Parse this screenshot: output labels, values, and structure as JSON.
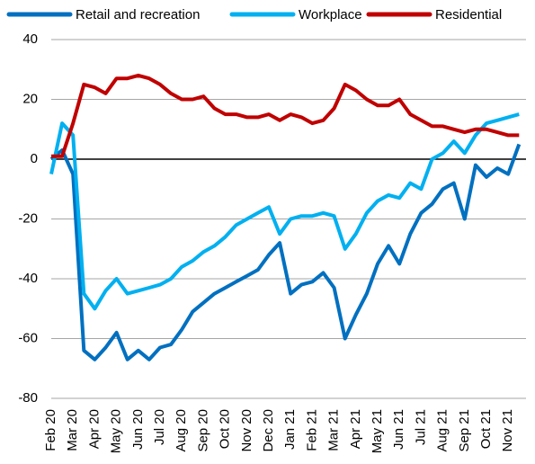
{
  "chart_data": {
    "type": "line",
    "categories": [
      "Feb 20",
      null,
      "Mar 20",
      null,
      "Apr 20",
      null,
      "May 20",
      null,
      "Jun 20",
      null,
      "Jul 20",
      null,
      "Aug 20",
      null,
      "Sep 20",
      null,
      "Oct 20",
      null,
      "Nov 20",
      null,
      "Dec 20",
      null,
      "Jan 21",
      null,
      "Feb 21",
      null,
      "Mar 21",
      null,
      "Apr 21",
      null,
      "May 21",
      null,
      "Jun 21",
      null,
      "Jul 21",
      null,
      "Aug 21",
      null,
      "Sep 21",
      null,
      "Oct 21",
      null,
      "Nov 21",
      null
    ],
    "series": [
      {
        "name": "Retail and recreation",
        "color": "#0070c0",
        "values": [
          0,
          3,
          -5,
          -64,
          -67,
          -63,
          -58,
          -67,
          -64,
          -67,
          -63,
          -62,
          -57,
          -51,
          -48,
          -45,
          -43,
          -41,
          -39,
          -37,
          -32,
          -28,
          -45,
          -42,
          -41,
          -38,
          -43,
          -60,
          -52,
          -45,
          -35,
          -29,
          -35,
          -25,
          -18,
          -15,
          -10,
          -8,
          -20,
          -2,
          -6,
          -3,
          -5,
          5
        ]
      },
      {
        "name": "Workplace",
        "color": "#00b0f0",
        "values": [
          -5,
          12,
          8,
          -45,
          -50,
          -44,
          -40,
          -45,
          -44,
          -43,
          -42,
          -40,
          -36,
          -34,
          -31,
          -29,
          -26,
          -22,
          -20,
          -18,
          -16,
          -25,
          -20,
          -19,
          -19,
          -18,
          -19,
          -30,
          -25,
          -18,
          -14,
          -12,
          -13,
          -8,
          -10,
          0,
          2,
          6,
          2,
          8,
          12,
          13,
          14,
          15
        ]
      },
      {
        "name": "Residential",
        "color": "#c00000",
        "values": [
          1,
          1,
          12,
          25,
          24,
          22,
          27,
          27,
          28,
          27,
          25,
          22,
          20,
          20,
          21,
          17,
          15,
          15,
          14,
          14,
          15,
          13,
          15,
          14,
          12,
          13,
          17,
          25,
          23,
          20,
          18,
          18,
          20,
          15,
          13,
          11,
          11,
          10,
          9,
          10,
          10,
          9,
          8,
          8
        ]
      }
    ],
    "ylim": [
      -80,
      40
    ],
    "yticks": [
      -80,
      -60,
      -40,
      -20,
      0,
      20,
      40
    ],
    "grid": true,
    "legend": "top"
  }
}
